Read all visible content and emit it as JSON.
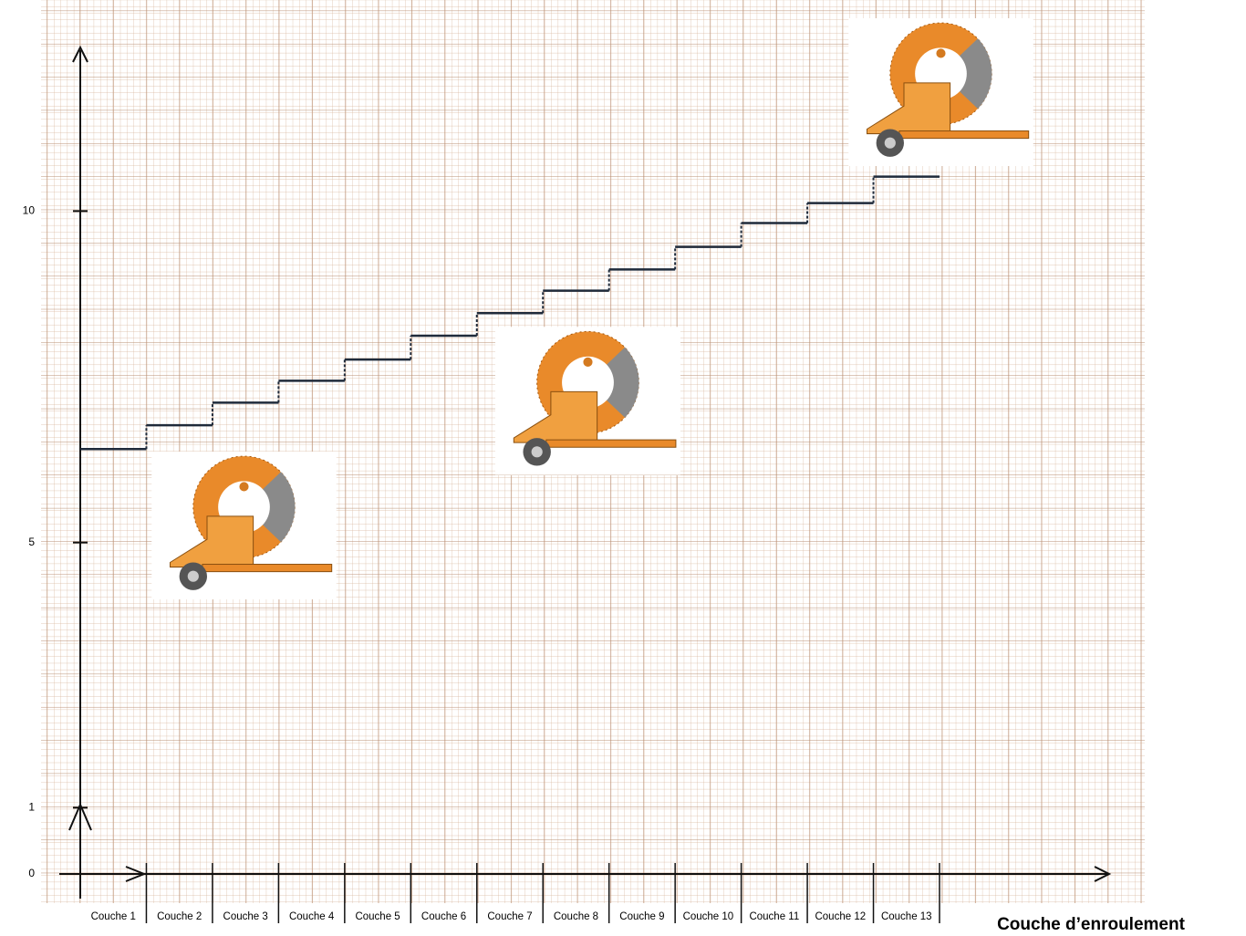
{
  "chart_data": {
    "type": "step",
    "x_label": "Couche d’enroulement",
    "categories": [
      "Couche 1",
      "Couche 2",
      "Couche 3",
      "Couche 4",
      "Couche 5",
      "Couche 6",
      "Couche 7",
      "Couche 8",
      "Couche 9",
      "Couche 10",
      "Couche 11",
      "Couche 12",
      "Couche 13"
    ],
    "values": [
      6.41,
      6.77,
      7.11,
      7.44,
      7.76,
      8.12,
      8.46,
      8.8,
      9.12,
      9.46,
      9.82,
      10.12,
      10.52
    ],
    "color": "#1f2a3a",
    "ylim": [
      0,
      12.4
    ],
    "yticks": [
      0,
      1,
      5,
      10
    ],
    "grid": true
  }
}
